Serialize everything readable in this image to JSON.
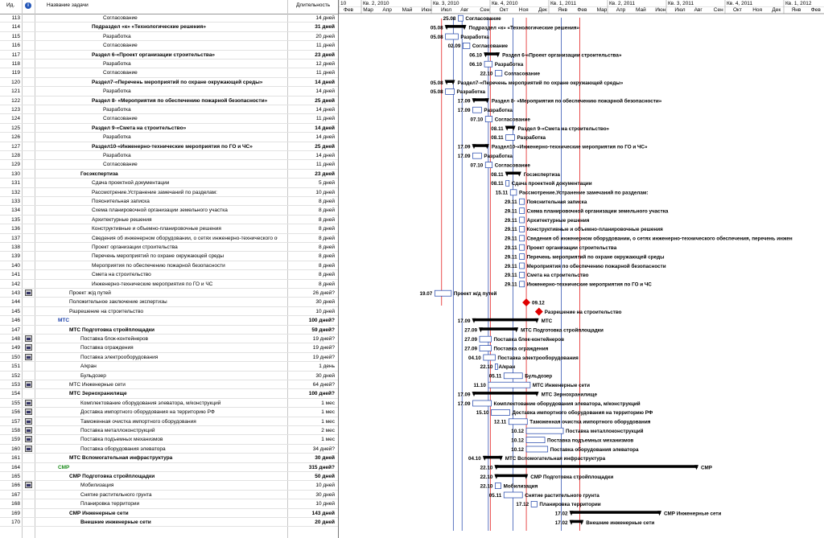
{
  "header": {
    "id": "Ид.",
    "info": "i",
    "name": "Название задачи",
    "duration": "Длительность"
  },
  "timeline": {
    "quarters": [
      "10",
      "Кв. 2, 2010",
      "Кв. 3, 2010",
      "Кв. 4, 2010",
      "Кв. 1, 2011",
      "Кв. 2, 2011",
      "Кв. 3, 2011",
      "Кв. 4, 2011",
      "Кв. 1, 2012"
    ],
    "months": [
      "Фев",
      "Мар",
      "Апр",
      "Май",
      "Июн",
      "Июл",
      "Авг",
      "Сен",
      "Окт",
      "Ноя",
      "Дек",
      "Янв",
      "Фев",
      "Мар",
      "Апр",
      "Май",
      "Июн",
      "Июл",
      "Авг",
      "Сен",
      "Окт",
      "Ноя",
      "Дек",
      "Янв",
      "Фев"
    ]
  },
  "colors": {
    "summary": "#000000",
    "task": "#ffffff",
    "border": "#1a3fa8",
    "link": "#1a3fa8",
    "milestone": "#e00000",
    "critical": "#e00000",
    "smr_label": "#1a8a1a"
  },
  "rows": [
    {
      "id": "113",
      "name": "Согласование",
      "dur": "14 дней",
      "lvl": 4,
      "b": false,
      "ic": false,
      "date": "25.08",
      "label": "Согласование",
      "s": 6.8,
      "e": 7.05,
      "t": "task"
    },
    {
      "id": "114",
      "name": "Подраздел «к» «Технологические решения»",
      "dur": "31 дней",
      "lvl": 3,
      "b": true,
      "ic": false,
      "date": "05.08",
      "label": "Подраздел «к» «Технологические решения»",
      "s": 6.15,
      "e": 7.18,
      "t": "sum"
    },
    {
      "id": "115",
      "name": "Разработка",
      "dur": "20 дней",
      "lvl": 4,
      "b": false,
      "ic": false,
      "date": "05.08",
      "label": "Разработка",
      "s": 6.15,
      "e": 6.8,
      "t": "task"
    },
    {
      "id": "116",
      "name": "Согласование",
      "dur": "11 дней",
      "lvl": 4,
      "b": false,
      "ic": false,
      "date": "02.09",
      "label": "Согласование",
      "s": 7.05,
      "e": 7.4,
      "t": "task"
    },
    {
      "id": "117",
      "name": "Раздел 6-«Проект организации строительства»",
      "dur": "23 дней",
      "lvl": 3,
      "b": true,
      "ic": false,
      "date": "06.10",
      "label": "Раздел 6-«Проект организации строительства»",
      "s": 8.15,
      "e": 8.9,
      "t": "sum"
    },
    {
      "id": "118",
      "name": "Разработка",
      "dur": "12 дней",
      "lvl": 4,
      "b": false,
      "ic": false,
      "date": "06.10",
      "label": "Разработка",
      "s": 8.15,
      "e": 8.55,
      "t": "task"
    },
    {
      "id": "119",
      "name": "Согласование",
      "dur": "11 дней",
      "lvl": 4,
      "b": false,
      "ic": false,
      "date": "22.10",
      "label": "Согласование",
      "s": 8.7,
      "e": 9.05,
      "t": "task"
    },
    {
      "id": "120",
      "name": "Раздел7-«Перечень мероприятий по охране окружающей среды»",
      "dur": "14 дней",
      "lvl": 3,
      "b": true,
      "ic": false,
      "date": "05.08",
      "label": "Раздел7-«Перечень мероприятий по охране окружающей среды»",
      "s": 6.15,
      "e": 6.6,
      "t": "sum"
    },
    {
      "id": "121",
      "name": "Разработка",
      "dur": "14 дней",
      "lvl": 4,
      "b": false,
      "ic": false,
      "date": "05.08",
      "label": "Разработка",
      "s": 6.15,
      "e": 6.6,
      "t": "task"
    },
    {
      "id": "122",
      "name": "Раздел 8- «Мероприятия по обеспечению пожарной безопасности»",
      "dur": "25 дней",
      "lvl": 3,
      "b": true,
      "ic": false,
      "date": "17.09",
      "label": "Раздел 8- «Мероприятия по обеспечению пожарной безопасности»",
      "s": 7.55,
      "e": 8.35,
      "t": "sum"
    },
    {
      "id": "123",
      "name": "Разработка",
      "dur": "14 дней",
      "lvl": 4,
      "b": false,
      "ic": false,
      "date": "17.09",
      "label": "Разработка",
      "s": 7.55,
      "e": 8.0,
      "t": "task"
    },
    {
      "id": "124",
      "name": "Согласование",
      "dur": "11 дней",
      "lvl": 4,
      "b": false,
      "ic": false,
      "date": "07.10",
      "label": "Согласование",
      "s": 8.2,
      "e": 8.55,
      "t": "task"
    },
    {
      "id": "125",
      "name": "Раздел 9-«Смета на строительство»",
      "dur": "14 дней",
      "lvl": 3,
      "b": true,
      "ic": false,
      "date": "08.11",
      "label": "Раздел 9-«Смета на строительство»",
      "s": 9.25,
      "e": 9.7,
      "t": "sum"
    },
    {
      "id": "126",
      "name": "Разработка",
      "dur": "14 дней",
      "lvl": 4,
      "b": false,
      "ic": false,
      "date": "08.11",
      "label": "Разработка",
      "s": 9.25,
      "e": 9.7,
      "t": "task"
    },
    {
      "id": "127",
      "name": "Раздел10-«Инженерно-технические мероприятия по ГО и ЧС»",
      "dur": "25 дней",
      "lvl": 3,
      "b": true,
      "ic": false,
      "date": "17.09",
      "label": "Раздел10-«Инженерно-технические мероприятия по ГО и ЧС»",
      "s": 7.55,
      "e": 8.35,
      "t": "sum"
    },
    {
      "id": "128",
      "name": "Разработка",
      "dur": "14 дней",
      "lvl": 4,
      "b": false,
      "ic": false,
      "date": "17.09",
      "label": "Разработка",
      "s": 7.55,
      "e": 8.0,
      "t": "task"
    },
    {
      "id": "129",
      "name": "Согласование",
      "dur": "11 дней",
      "lvl": 4,
      "b": false,
      "ic": false,
      "date": "07.10",
      "label": "Согласование",
      "s": 8.2,
      "e": 8.55,
      "t": "task"
    },
    {
      "id": "130",
      "name": "Госэкспертиза",
      "dur": "23 дней",
      "lvl": 2,
      "b": true,
      "ic": false,
      "date": "08.11",
      "label": "Госэкспертиза",
      "s": 9.25,
      "e": 10.0,
      "t": "sum"
    },
    {
      "id": "131",
      "name": "Сдача проектной документации",
      "dur": "5 дней",
      "lvl": 3,
      "b": false,
      "ic": false,
      "date": "08.11",
      "label": "Сдача проектной документации",
      "s": 9.25,
      "e": 9.42,
      "t": "task"
    },
    {
      "id": "132",
      "name": "Рассмотрение.Устранение замечаний по разделам:",
      "dur": "10 дней",
      "lvl": 3,
      "b": false,
      "ic": false,
      "date": "15.11",
      "label": "Рассмотрение.Устранение замечаний по разделам:",
      "s": 9.48,
      "e": 9.8,
      "t": "task"
    },
    {
      "id": "133",
      "name": "Пояснительная записка",
      "dur": "8 дней",
      "lvl": 3,
      "b": false,
      "ic": false,
      "date": "29.11",
      "label": "Пояснительная записка",
      "s": 9.95,
      "e": 10.2,
      "t": "task"
    },
    {
      "id": "134",
      "name": "Схема планировочной организации земельного участка",
      "dur": "8 дней",
      "lvl": 3,
      "b": false,
      "ic": false,
      "date": "29.11",
      "label": "Схема планировочной организации земельного участка",
      "s": 9.95,
      "e": 10.2,
      "t": "task"
    },
    {
      "id": "135",
      "name": "Архитектурные решения",
      "dur": "8 дней",
      "lvl": 3,
      "b": false,
      "ic": false,
      "date": "29.11",
      "label": "Архитектурные решения",
      "s": 9.95,
      "e": 10.2,
      "t": "task"
    },
    {
      "id": "136",
      "name": "Конструктивные и объемно-планировочные решения",
      "dur": "8 дней",
      "lvl": 3,
      "b": false,
      "ic": false,
      "date": "29.11",
      "label": "Конструктивные и объемно-планировочные решения",
      "s": 9.95,
      "e": 10.2,
      "t": "task"
    },
    {
      "id": "137",
      "name": "Сведения об инженерном оборудовании, о сетях инженерно-технического обес",
      "dur": "8 дней",
      "lvl": 3,
      "b": false,
      "ic": false,
      "date": "29.11",
      "label": "Сведения об инженерном оборудовании, о сетях инженерно-технического обеспечения, перечень инжен",
      "s": 9.95,
      "e": 10.2,
      "t": "task"
    },
    {
      "id": "138",
      "name": "Проект организации строительства",
      "dur": "8 дней",
      "lvl": 3,
      "b": false,
      "ic": false,
      "date": "29.11",
      "label": "Проект организации строительства",
      "s": 9.95,
      "e": 10.2,
      "t": "task"
    },
    {
      "id": "139",
      "name": "Перечень мероприятий по охране окружающей среды",
      "dur": "8 дней",
      "lvl": 3,
      "b": false,
      "ic": false,
      "date": "29.11",
      "label": "Перечень мероприятий по охране окружающей среды",
      "s": 9.95,
      "e": 10.2,
      "t": "task"
    },
    {
      "id": "140",
      "name": "Мероприятия по обеспечению пожарной безопасности",
      "dur": "8 дней",
      "lvl": 3,
      "b": false,
      "ic": false,
      "date": "29.11",
      "label": "Мероприятия по обеспечению пожарной безопасности",
      "s": 9.95,
      "e": 10.2,
      "t": "task"
    },
    {
      "id": "141",
      "name": "Смета на строительство",
      "dur": "8 дней",
      "lvl": 3,
      "b": false,
      "ic": false,
      "date": "29.11",
      "label": "Смета на строительство",
      "s": 9.95,
      "e": 10.2,
      "t": "task"
    },
    {
      "id": "142",
      "name": "Инженерно-технические мероприятия по ГО и ЧС",
      "dur": "8 дней",
      "lvl": 3,
      "b": false,
      "ic": false,
      "date": "29.11",
      "label": "Инженерно-технические мероприятия по ГО и ЧС",
      "s": 9.95,
      "e": 10.2,
      "t": "task"
    },
    {
      "id": "143",
      "name": "Проект ж/д путей",
      "dur": "26 дней?",
      "lvl": 1,
      "b": false,
      "ic": true,
      "date": "19.07",
      "label": "Проект ж/д путей",
      "s": 5.6,
      "e": 6.45,
      "t": "task"
    },
    {
      "id": "144",
      "name": "Положительное заключение экспертизы",
      "dur": "30 дней",
      "lvl": 1,
      "b": false,
      "ic": false,
      "date": "",
      "label": "09.12",
      "s": 10.3,
      "e": 10.3,
      "t": "ms"
    },
    {
      "id": "145",
      "name": "Разрешение на строительство",
      "dur": "10 дней",
      "lvl": 1,
      "b": false,
      "ic": false,
      "date": "",
      "label": "Разрешение на строительство",
      "s": 10.95,
      "e": 10.95,
      "t": "ms"
    },
    {
      "id": "146",
      "name": "МТС",
      "dur": "100 дней?",
      "lvl": 0,
      "b": true,
      "ic": false,
      "date": "17.09",
      "label": "МТС",
      "s": 7.55,
      "e": 10.9,
      "t": "sum"
    },
    {
      "id": "147",
      "name": "МТС Подготовка стройплощадки",
      "dur": "59 дней?",
      "lvl": 1,
      "b": true,
      "ic": false,
      "date": "27.09",
      "label": "МТС Подготовка стройплощадки",
      "s": 7.9,
      "e": 9.85,
      "t": "sum"
    },
    {
      "id": "148",
      "name": "Поставка блок-контейнеров",
      "dur": "19 дней?",
      "lvl": 2,
      "b": false,
      "ic": true,
      "date": "27.09",
      "label": "Поставка блок-контейнеров",
      "s": 7.9,
      "e": 8.5,
      "t": "task"
    },
    {
      "id": "149",
      "name": "Поставка ограждения",
      "dur": "19 дней?",
      "lvl": 2,
      "b": false,
      "ic": true,
      "date": "27.09",
      "label": "Поставка ограждения",
      "s": 7.9,
      "e": 8.5,
      "t": "task"
    },
    {
      "id": "150",
      "name": "Поставка электрооборудования",
      "dur": "19 дней?",
      "lvl": 2,
      "b": false,
      "ic": true,
      "date": "04.10",
      "label": "Поставка электрооборудования",
      "s": 8.1,
      "e": 8.7,
      "t": "task"
    },
    {
      "id": "151",
      "name": "А/кран",
      "dur": "1 день",
      "lvl": 2,
      "b": false,
      "ic": false,
      "date": "22.10",
      "label": "А/кран",
      "s": 8.7,
      "e": 8.75,
      "t": "task"
    },
    {
      "id": "152",
      "name": "Бульдозер",
      "dur": "30 дней",
      "lvl": 2,
      "b": false,
      "ic": false,
      "date": "05.11",
      "label": "Бульдозер",
      "s": 9.15,
      "e": 10.1,
      "t": "task"
    },
    {
      "id": "153",
      "name": "МТС Инженерные сети",
      "dur": "64 дней?",
      "lvl": 1,
      "b": false,
      "ic": true,
      "date": "11.10",
      "label": "МТС Инженерные сети",
      "s": 8.35,
      "e": 10.5,
      "t": "task"
    },
    {
      "id": "154",
      "name": "МТС Зернохранилище",
      "dur": "100 дней?",
      "lvl": 1,
      "b": true,
      "ic": false,
      "date": "17.09",
      "label": "МТС Зернохранилище",
      "s": 7.55,
      "e": 10.9,
      "t": "sum"
    },
    {
      "id": "155",
      "name": "Комплектование оборудования элеватора, м/конструкций",
      "dur": "1 мес",
      "lvl": 2,
      "b": false,
      "ic": true,
      "date": "17.09",
      "label": "Комплектование оборудования элеватора, м/конструкций",
      "s": 7.55,
      "e": 8.5,
      "t": "task"
    },
    {
      "id": "156",
      "name": "Доставка импортного оборудования на территорию РФ",
      "dur": "1 мес",
      "lvl": 2,
      "b": false,
      "ic": true,
      "date": "15.10",
      "label": "Доставка импортного оборудования на территорию РФ",
      "s": 8.5,
      "e": 9.45,
      "t": "task"
    },
    {
      "id": "157",
      "name": "Таможенная очистка импортного оборудования",
      "dur": "1 мес",
      "lvl": 2,
      "b": false,
      "ic": true,
      "date": "12.11",
      "label": "Таможенная очистка импортного оборудования",
      "s": 9.4,
      "e": 10.35,
      "t": "task"
    },
    {
      "id": "158",
      "name": "Поставка металлоконструкций",
      "dur": "2 мес",
      "lvl": 2,
      "b": false,
      "ic": true,
      "date": "10.12",
      "label": "Поставка металлоконструкций",
      "s": 10.3,
      "e": 12.2,
      "t": "task"
    },
    {
      "id": "159",
      "name": "Поставка подъемных механизмов",
      "dur": "1 мес",
      "lvl": 2,
      "b": false,
      "ic": true,
      "date": "10.12",
      "label": "Поставка подъемных механизмов",
      "s": 10.3,
      "e": 11.25,
      "t": "task"
    },
    {
      "id": "160",
      "name": "Поставка оборудования элеватора",
      "dur": "34 дней?",
      "lvl": 2,
      "b": false,
      "ic": true,
      "date": "10.12",
      "label": "Поставка оборудования элеватора",
      "s": 10.3,
      "e": 11.4,
      "t": "task"
    },
    {
      "id": "161",
      "name": "МТС Вспомогательная инфраструктура",
      "dur": "30 дней",
      "lvl": 1,
      "b": true,
      "ic": false,
      "date": "04.10",
      "label": "МТС Вспомогательная инфраструктура",
      "s": 8.1,
      "e": 9.05,
      "t": "sum"
    },
    {
      "id": "164",
      "name": "СМР",
      "dur": "315 дней?",
      "lvl": 0,
      "b": true,
      "ic": false,
      "date": "22.10",
      "label": "СМР",
      "s": 8.7,
      "e": 19.1,
      "t": "sum"
    },
    {
      "id": "165",
      "name": "СМР Подготовка стройплощадки",
      "dur": "50 дней",
      "lvl": 1,
      "b": true,
      "ic": false,
      "date": "22.10",
      "label": "СМР Подготовка стройплощадки",
      "s": 8.7,
      "e": 10.35,
      "t": "sum"
    },
    {
      "id": "166",
      "name": "Мобилизация",
      "dur": "10 дней",
      "lvl": 2,
      "b": false,
      "ic": true,
      "date": "22.10",
      "label": "Мобилизация",
      "s": 8.7,
      "e": 9.0,
      "t": "task"
    },
    {
      "id": "167",
      "name": "Снятие растительного грунта",
      "dur": "30 дней",
      "lvl": 2,
      "b": false,
      "ic": false,
      "date": "05.11",
      "label": "Снятие растительного грунта",
      "s": 9.15,
      "e": 10.1,
      "t": "task"
    },
    {
      "id": "168",
      "name": "Планировка территории",
      "dur": "10 дней",
      "lvl": 2,
      "b": false,
      "ic": false,
      "date": "17.12",
      "label": "Планировка территории",
      "s": 10.55,
      "e": 10.85,
      "t": "task"
    },
    {
      "id": "169",
      "name": "СМР Инженерные сети",
      "dur": "143 дней",
      "lvl": 1,
      "b": true,
      "ic": false,
      "date": "17.02",
      "label": "СМР Инженерные сети",
      "s": 12.55,
      "e": 17.2,
      "t": "sum"
    },
    {
      "id": "170",
      "name": "Внешние инженерные сети",
      "dur": "20 дней",
      "lvl": 2,
      "b": true,
      "ic": false,
      "date": "17.02",
      "label": "Внешние инженерные сети",
      "s": 12.55,
      "e": 13.2,
      "t": "sum"
    }
  ]
}
